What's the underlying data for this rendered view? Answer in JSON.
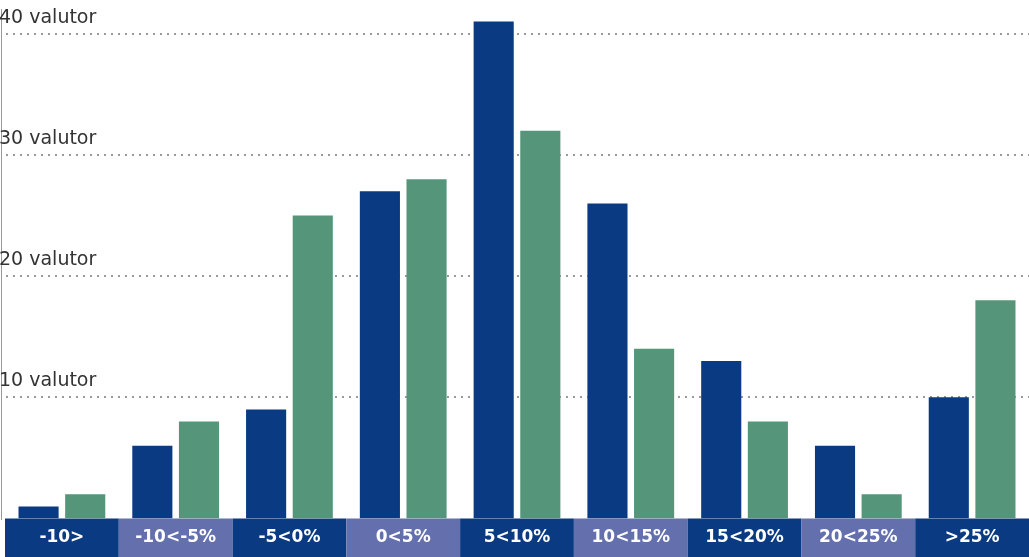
{
  "chart_data": {
    "type": "bar",
    "categories": [
      "-10>",
      "-10<-5%",
      "-5<0%",
      "0<5%",
      "5<10%",
      "10<15%",
      "15<20%",
      "20<25%",
      ">25%"
    ],
    "series": [
      {
        "color": "#0a3a82",
        "values": [
          1,
          6,
          9,
          27,
          41,
          26,
          13,
          6,
          10
        ]
      },
      {
        "color": "#55967a",
        "values": [
          2,
          8,
          25,
          28,
          32,
          14,
          8,
          2,
          18
        ]
      }
    ],
    "ylim": [
      0,
      42
    ],
    "yticks": [
      {
        "value": 10,
        "label": "10 valutor"
      },
      {
        "value": 20,
        "label": "20 valutor"
      },
      {
        "value": 30,
        "label": "30 valutor"
      },
      {
        "value": 40,
        "label": "40 valutor"
      }
    ],
    "grid": "y",
    "legend": false
  }
}
